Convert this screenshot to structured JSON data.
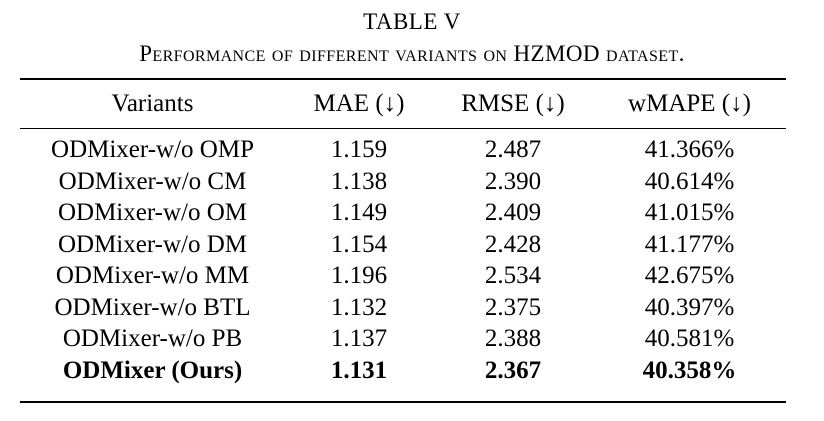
{
  "caption": {
    "title": "TABLE V",
    "subtitle": "Performance of different variants on HZMOD dataset."
  },
  "table": {
    "columns": [
      "Variants",
      "MAE (↓)",
      "RMSE (↓)",
      "wMAPE (↓)"
    ],
    "rows": [
      {
        "variant": "ODMixer-w/o OMP",
        "mae": "1.159",
        "rmse": "2.487",
        "wmape": "41.366%"
      },
      {
        "variant": "ODMixer-w/o CM",
        "mae": "1.138",
        "rmse": "2.390",
        "wmape": "40.614%"
      },
      {
        "variant": "ODMixer-w/o OM",
        "mae": "1.149",
        "rmse": "2.409",
        "wmape": "41.015%"
      },
      {
        "variant": "ODMixer-w/o DM",
        "mae": "1.154",
        "rmse": "2.428",
        "wmape": "41.177%"
      },
      {
        "variant": "ODMixer-w/o MM",
        "mae": "1.196",
        "rmse": "2.534",
        "wmape": "42.675%"
      },
      {
        "variant": "ODMixer-w/o BTL",
        "mae": "1.132",
        "rmse": "2.375",
        "wmape": "40.397%"
      },
      {
        "variant": "ODMixer-w/o PB",
        "mae": "1.137",
        "rmse": "2.388",
        "wmape": "40.581%"
      },
      {
        "variant": "ODMixer (Ours)",
        "mae": "1.131",
        "rmse": "2.367",
        "wmape": "40.358%"
      }
    ]
  }
}
